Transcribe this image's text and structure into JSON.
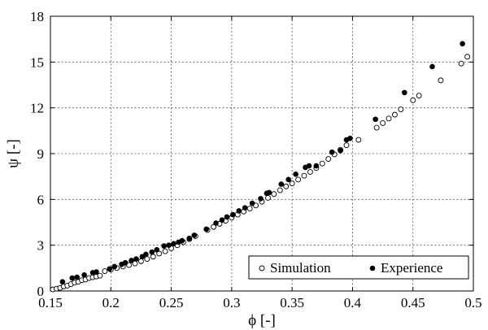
{
  "chart_data": {
    "type": "scatter",
    "xlabel": "ϕ [-]",
    "ylabel": "ψ [-]",
    "xlim": [
      0.15,
      0.5
    ],
    "ylim": [
      0,
      18
    ],
    "xticks": [
      0.15,
      0.2,
      0.25,
      0.3,
      0.35,
      0.4,
      0.45,
      0.5
    ],
    "xtick_labels": [
      "0.15",
      "0.2",
      "0.25",
      "0.3",
      "0.35",
      "0.4",
      "0.45",
      "0.5"
    ],
    "yticks": [
      0,
      3,
      6,
      9,
      12,
      15,
      18
    ],
    "ytick_labels": [
      "0",
      "3",
      "6",
      "9",
      "12",
      "15",
      "18"
    ],
    "grid": true,
    "legend_position": "bottom-right",
    "series": [
      {
        "name": "Simulation",
        "marker": "open-circle",
        "color": "#000000",
        "x": [
          0.152,
          0.155,
          0.158,
          0.161,
          0.164,
          0.167,
          0.17,
          0.173,
          0.176,
          0.179,
          0.182,
          0.185,
          0.188,
          0.191,
          0.195,
          0.2,
          0.205,
          0.21,
          0.215,
          0.22,
          0.225,
          0.23,
          0.235,
          0.24,
          0.245,
          0.25,
          0.255,
          0.26,
          0.265,
          0.27,
          0.28,
          0.285,
          0.29,
          0.295,
          0.3,
          0.305,
          0.31,
          0.315,
          0.32,
          0.325,
          0.33,
          0.335,
          0.34,
          0.345,
          0.35,
          0.355,
          0.36,
          0.365,
          0.37,
          0.375,
          0.38,
          0.385,
          0.39,
          0.395,
          0.405,
          0.42,
          0.425,
          0.43,
          0.435,
          0.44,
          0.45,
          0.455,
          0.473,
          0.49,
          0.495
        ],
        "y": [
          0.1,
          0.15,
          0.2,
          0.3,
          0.35,
          0.45,
          0.55,
          0.6,
          0.7,
          0.75,
          0.85,
          0.9,
          0.95,
          1.0,
          1.3,
          1.4,
          1.5,
          1.6,
          1.7,
          1.8,
          1.95,
          2.1,
          2.25,
          2.45,
          2.6,
          2.8,
          3.0,
          3.2,
          3.4,
          3.6,
          4.0,
          4.2,
          4.4,
          4.6,
          4.8,
          5.0,
          5.2,
          5.4,
          5.6,
          5.85,
          6.1,
          6.35,
          6.6,
          6.85,
          7.05,
          7.3,
          7.55,
          7.8,
          8.05,
          8.35,
          8.65,
          8.95,
          9.25,
          9.55,
          9.9,
          10.7,
          11.0,
          11.3,
          11.55,
          11.9,
          12.5,
          12.8,
          13.8,
          14.9,
          15.35
        ]
      },
      {
        "name": "Experience",
        "marker": "filled-circle",
        "color": "#000000",
        "x": [
          0.16,
          0.168,
          0.172,
          0.178,
          0.185,
          0.188,
          0.199,
          0.203,
          0.209,
          0.212,
          0.217,
          0.221,
          0.226,
          0.229,
          0.234,
          0.238,
          0.244,
          0.248,
          0.252,
          0.256,
          0.259,
          0.265,
          0.269,
          0.279,
          0.287,
          0.292,
          0.296,
          0.301,
          0.306,
          0.311,
          0.317,
          0.324,
          0.329,
          0.331,
          0.341,
          0.347,
          0.353,
          0.361,
          0.364,
          0.37,
          0.383,
          0.39,
          0.395,
          0.398,
          0.419,
          0.443,
          0.466,
          0.491
        ],
        "y": [
          0.6,
          0.85,
          0.9,
          1.05,
          1.2,
          1.25,
          1.45,
          1.6,
          1.75,
          1.85,
          2.0,
          2.1,
          2.25,
          2.4,
          2.55,
          2.7,
          2.95,
          3.0,
          3.1,
          3.2,
          3.3,
          3.45,
          3.65,
          4.05,
          4.45,
          4.65,
          4.85,
          5.0,
          5.25,
          5.45,
          5.75,
          6.05,
          6.4,
          6.45,
          7.0,
          7.3,
          7.65,
          8.1,
          8.2,
          8.2,
          9.1,
          9.2,
          9.9,
          10.0,
          11.25,
          13.0,
          14.7,
          16.2
        ]
      }
    ]
  }
}
